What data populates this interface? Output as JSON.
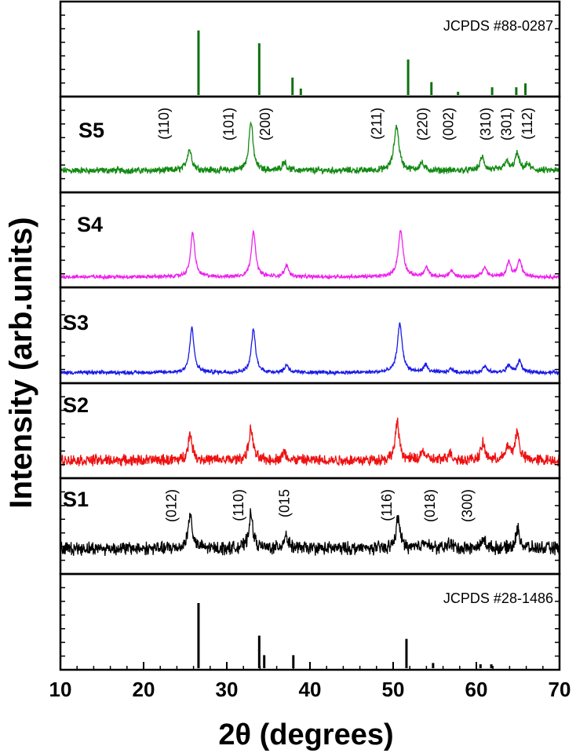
{
  "chart_data": {
    "type": "line",
    "xlabel": "2θ (degrees)",
    "ylabel": "Intensity (arb.units)",
    "xlim": [
      10,
      70
    ],
    "xticks": [
      "10",
      "20",
      "30",
      "40",
      "50",
      "60",
      "70"
    ],
    "panels": [
      {
        "id": "ref-top",
        "kind": "reference",
        "label": "JCPDS #88-0287",
        "color": "#107010",
        "ticks": [
          {
            "x": 26.6,
            "h": 1.0
          },
          {
            "x": 33.9,
            "h": 0.8
          },
          {
            "x": 37.9,
            "h": 0.27
          },
          {
            "x": 38.9,
            "h": 0.1
          },
          {
            "x": 51.8,
            "h": 0.55
          },
          {
            "x": 54.6,
            "h": 0.2
          },
          {
            "x": 57.8,
            "h": 0.05
          },
          {
            "x": 61.9,
            "h": 0.12
          },
          {
            "x": 64.8,
            "h": 0.12
          },
          {
            "x": 65.9,
            "h": 0.18
          }
        ]
      },
      {
        "id": "S5",
        "kind": "pattern",
        "label": "S5",
        "color": "#138a13",
        "baseline": 0.25,
        "noise": 0.07,
        "peaks": [
          {
            "x": 25.5,
            "h": 0.28,
            "w": 0.35
          },
          {
            "x": 32.9,
            "h": 0.65,
            "w": 0.3
          },
          {
            "x": 36.9,
            "h": 0.12,
            "w": 0.3
          },
          {
            "x": 50.4,
            "h": 0.6,
            "w": 0.35
          },
          {
            "x": 53.4,
            "h": 0.1,
            "w": 0.3
          },
          {
            "x": 60.7,
            "h": 0.18,
            "w": 0.3
          },
          {
            "x": 63.6,
            "h": 0.12,
            "w": 0.3
          },
          {
            "x": 64.9,
            "h": 0.22,
            "w": 0.3
          },
          {
            "x": 66.2,
            "h": 0.08,
            "w": 0.3
          }
        ],
        "annotations": [
          {
            "x": 23.0,
            "text": "(110)"
          },
          {
            "x": 30.8,
            "text": "(101)"
          },
          {
            "x": 35.2,
            "text": "(200)"
          },
          {
            "x": 48.6,
            "text": "(211)"
          },
          {
            "x": 54.1,
            "text": "(220)"
          },
          {
            "x": 57.2,
            "text": "(002)"
          },
          {
            "x": 61.7,
            "text": "(310)"
          },
          {
            "x": 64.2,
            "text": "(301)"
          },
          {
            "x": 66.7,
            "text": "(112)"
          }
        ]
      },
      {
        "id": "S4",
        "kind": "pattern",
        "label": "S4",
        "color": "#ee22ee",
        "baseline": 0.1,
        "noise": 0.04,
        "peaks": [
          {
            "x": 25.9,
            "h": 0.6,
            "w": 0.3
          },
          {
            "x": 33.2,
            "h": 0.62,
            "w": 0.3
          },
          {
            "x": 37.2,
            "h": 0.15,
            "w": 0.3
          },
          {
            "x": 50.9,
            "h": 0.62,
            "w": 0.35
          },
          {
            "x": 54.0,
            "h": 0.12,
            "w": 0.3
          },
          {
            "x": 57.0,
            "h": 0.08,
            "w": 0.3
          },
          {
            "x": 61.0,
            "h": 0.13,
            "w": 0.3
          },
          {
            "x": 63.9,
            "h": 0.2,
            "w": 0.3
          },
          {
            "x": 65.2,
            "h": 0.22,
            "w": 0.3
          }
        ]
      },
      {
        "id": "S3",
        "kind": "pattern",
        "label": "S3",
        "color": "#1a1ae6",
        "baseline": 0.1,
        "noise": 0.04,
        "peaks": [
          {
            "x": 25.8,
            "h": 0.6,
            "w": 0.3
          },
          {
            "x": 33.2,
            "h": 0.58,
            "w": 0.3
          },
          {
            "x": 37.2,
            "h": 0.1,
            "w": 0.3
          },
          {
            "x": 50.8,
            "h": 0.65,
            "w": 0.35
          },
          {
            "x": 53.9,
            "h": 0.1,
            "w": 0.3
          },
          {
            "x": 57.0,
            "h": 0.05,
            "w": 0.3
          },
          {
            "x": 61.0,
            "h": 0.08,
            "w": 0.3
          },
          {
            "x": 63.9,
            "h": 0.1,
            "w": 0.3
          },
          {
            "x": 65.2,
            "h": 0.16,
            "w": 0.3
          }
        ]
      },
      {
        "id": "S2",
        "kind": "pattern",
        "label": "S2",
        "color": "#ee1111",
        "baseline": 0.2,
        "noise": 0.12,
        "peaks": [
          {
            "x": 25.6,
            "h": 0.35,
            "w": 0.3
          },
          {
            "x": 32.9,
            "h": 0.42,
            "w": 0.3
          },
          {
            "x": 36.9,
            "h": 0.1,
            "w": 0.3
          },
          {
            "x": 50.5,
            "h": 0.5,
            "w": 0.3
          },
          {
            "x": 53.6,
            "h": 0.12,
            "w": 0.3
          },
          {
            "x": 56.8,
            "h": 0.1,
            "w": 0.3
          },
          {
            "x": 60.8,
            "h": 0.22,
            "w": 0.3
          },
          {
            "x": 63.8,
            "h": 0.18,
            "w": 0.3
          },
          {
            "x": 64.9,
            "h": 0.38,
            "w": 0.3
          }
        ]
      },
      {
        "id": "S1",
        "kind": "pattern",
        "label": "S1",
        "color": "#000000",
        "baseline": 0.3,
        "noise": 0.14,
        "peaks": [
          {
            "x": 25.6,
            "h": 0.45,
            "w": 0.3
          },
          {
            "x": 32.9,
            "h": 0.45,
            "w": 0.3
          },
          {
            "x": 37.1,
            "h": 0.18,
            "w": 0.3
          },
          {
            "x": 50.6,
            "h": 0.4,
            "w": 0.3
          },
          {
            "x": 53.8,
            "h": 0.12,
            "w": 0.3
          },
          {
            "x": 56.8,
            "h": 0.08,
            "w": 0.3
          },
          {
            "x": 60.9,
            "h": 0.12,
            "w": 0.3
          },
          {
            "x": 65.0,
            "h": 0.25,
            "w": 0.3
          }
        ],
        "annotations": [
          {
            "x": 23.9,
            "text": "(012)"
          },
          {
            "x": 32.0,
            "text": "(110)"
          },
          {
            "x": 37.5,
            "text": "(015"
          },
          {
            "x": 49.8,
            "text": "(116)"
          },
          {
            "x": 55.0,
            "text": "(018)"
          },
          {
            "x": 59.5,
            "text": "(300)"
          }
        ]
      },
      {
        "id": "ref-bottom",
        "kind": "reference",
        "label": "JCPDS #28-1486",
        "color": "#000000",
        "ticks": [
          {
            "x": 26.6,
            "h": 1.0
          },
          {
            "x": 33.9,
            "h": 0.5
          },
          {
            "x": 34.5,
            "h": 0.2
          },
          {
            "x": 38.0,
            "h": 0.2
          },
          {
            "x": 51.6,
            "h": 0.45
          },
          {
            "x": 54.8,
            "h": 0.08
          },
          {
            "x": 60.5,
            "h": 0.06
          },
          {
            "x": 61.8,
            "h": 0.06
          }
        ]
      }
    ]
  }
}
